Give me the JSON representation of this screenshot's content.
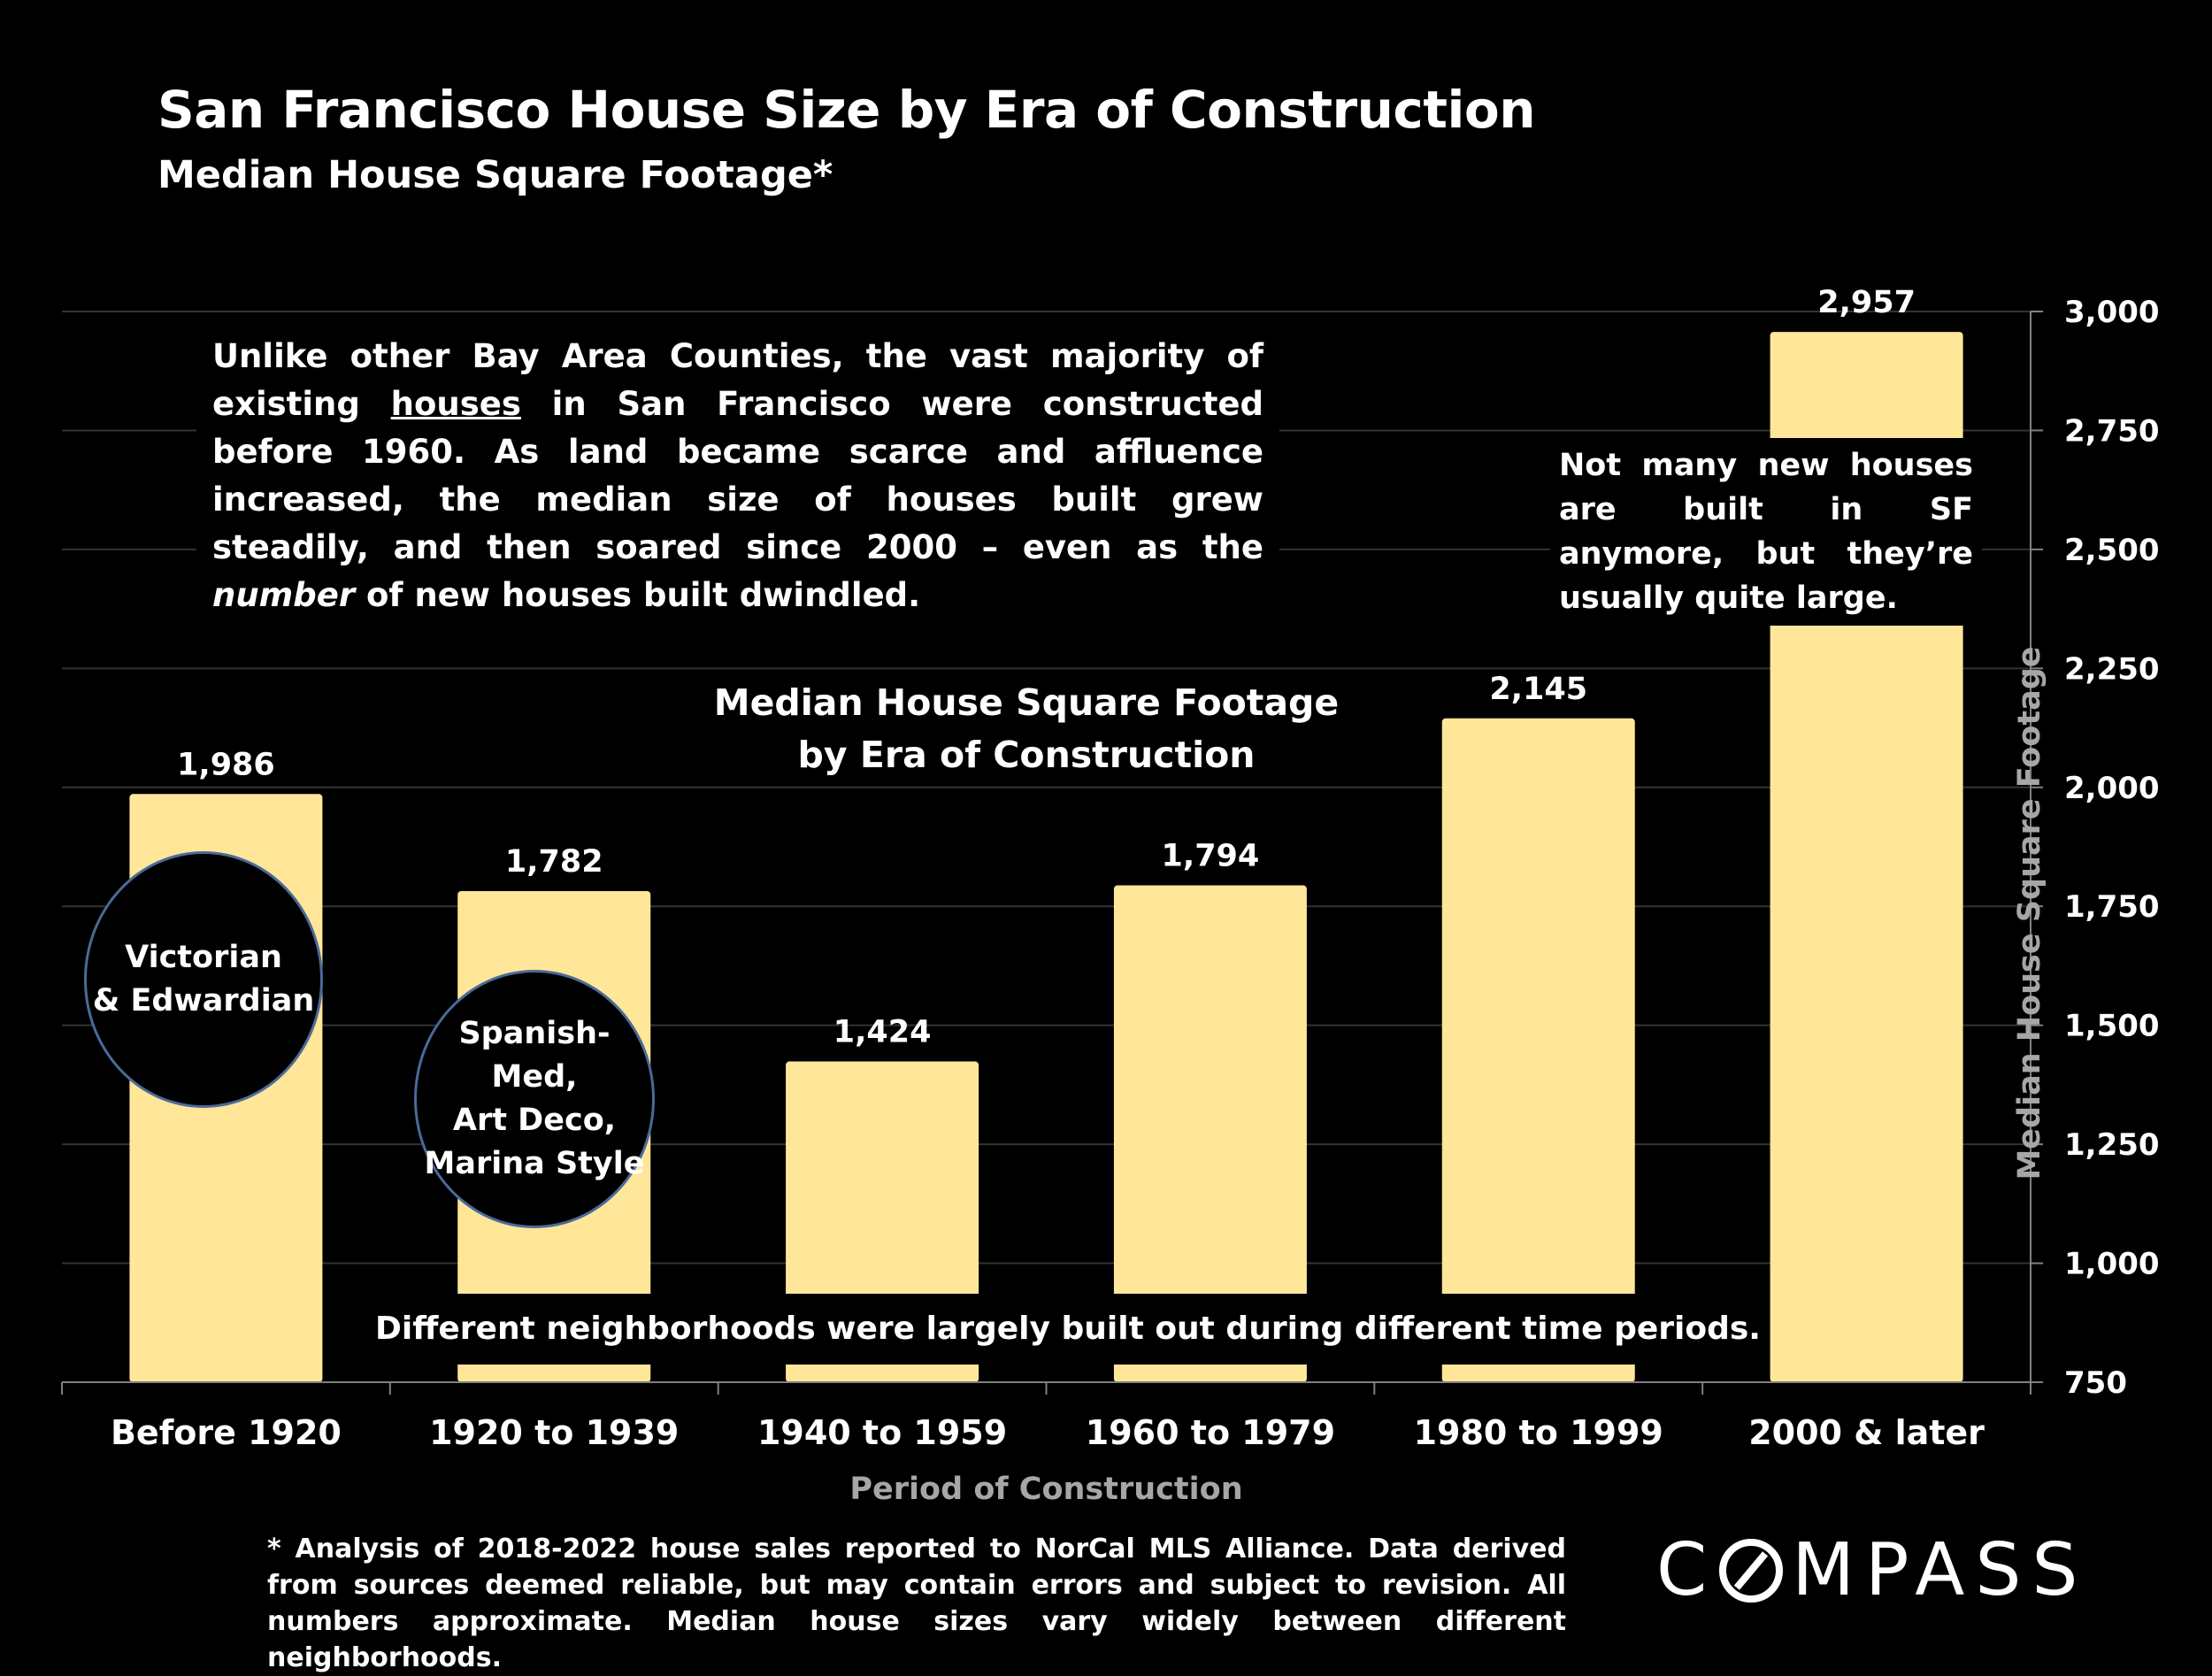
{
  "header": {
    "title": "San Francisco House Size by Era of Construction",
    "subtitle": "Median House Square Footage*"
  },
  "annotations": {
    "intro_part1": "Unlike other Bay Area Counties, the vast majority of existing ",
    "intro_underlined": "houses",
    "intro_part2": " in San Francisco were constructed before 1960. As land became scarce and affluence increased, the median size of houses built grew steadily, and then soared since 2000 – even as the ",
    "intro_italic": "number",
    "intro_part3": " of new houses built dwindled.",
    "new_houses_note": "Not many new houses are built in SF anymore, but they’re usually quite large.",
    "inner_title_line1": "Median House Square Footage",
    "inner_title_line2": "by Era of Construction",
    "neighborhoods_note": "Different neighborhoods were largely built out during different time periods.",
    "circle_1": "Victorian\n& Edwardian",
    "circle_2": "Spanish-Med,\nArt Deco,\nMarina Style"
  },
  "footnote": "* Analysis of 2018-2022 house sales reported to NorCal MLS Alliance.  Data derived from sources deemed reliable, but may contain errors and subject to revision. All numbers approximate. Median house sizes vary widely between different neighborhoods.",
  "logo": {
    "text_before": "C",
    "text_after": "MPASS"
  },
  "colors": {
    "bar": "#FFE699",
    "background": "#000000",
    "axis_title": "#A6A6A6",
    "gridline": "#333333",
    "circle_border": "#4A6A99"
  },
  "chart_data": {
    "type": "bar",
    "categories": [
      "Before 1920",
      "1920 to 1939",
      "1940 to 1959",
      "1960 to 1979",
      "1980 to 1999",
      "2000 & later"
    ],
    "values": [
      1986,
      1782,
      1424,
      1794,
      2145,
      2957
    ],
    "value_labels": [
      "1,986",
      "1,782",
      "1,424",
      "1,794",
      "2,145",
      "2,957"
    ],
    "xlabel": "Period of Construction",
    "ylabel": "Median House Square Footage",
    "ylim": [
      750,
      3000
    ],
    "yticks": [
      750,
      1000,
      1250,
      1500,
      1750,
      2000,
      2250,
      2500,
      2750,
      3000
    ],
    "ytick_labels": [
      "750",
      "1,000",
      "1,250",
      "1,500",
      "1,750",
      "2,000",
      "2,250",
      "2,500",
      "2,750",
      "3,000"
    ],
    "y_axis_side": "right",
    "grid": true
  }
}
